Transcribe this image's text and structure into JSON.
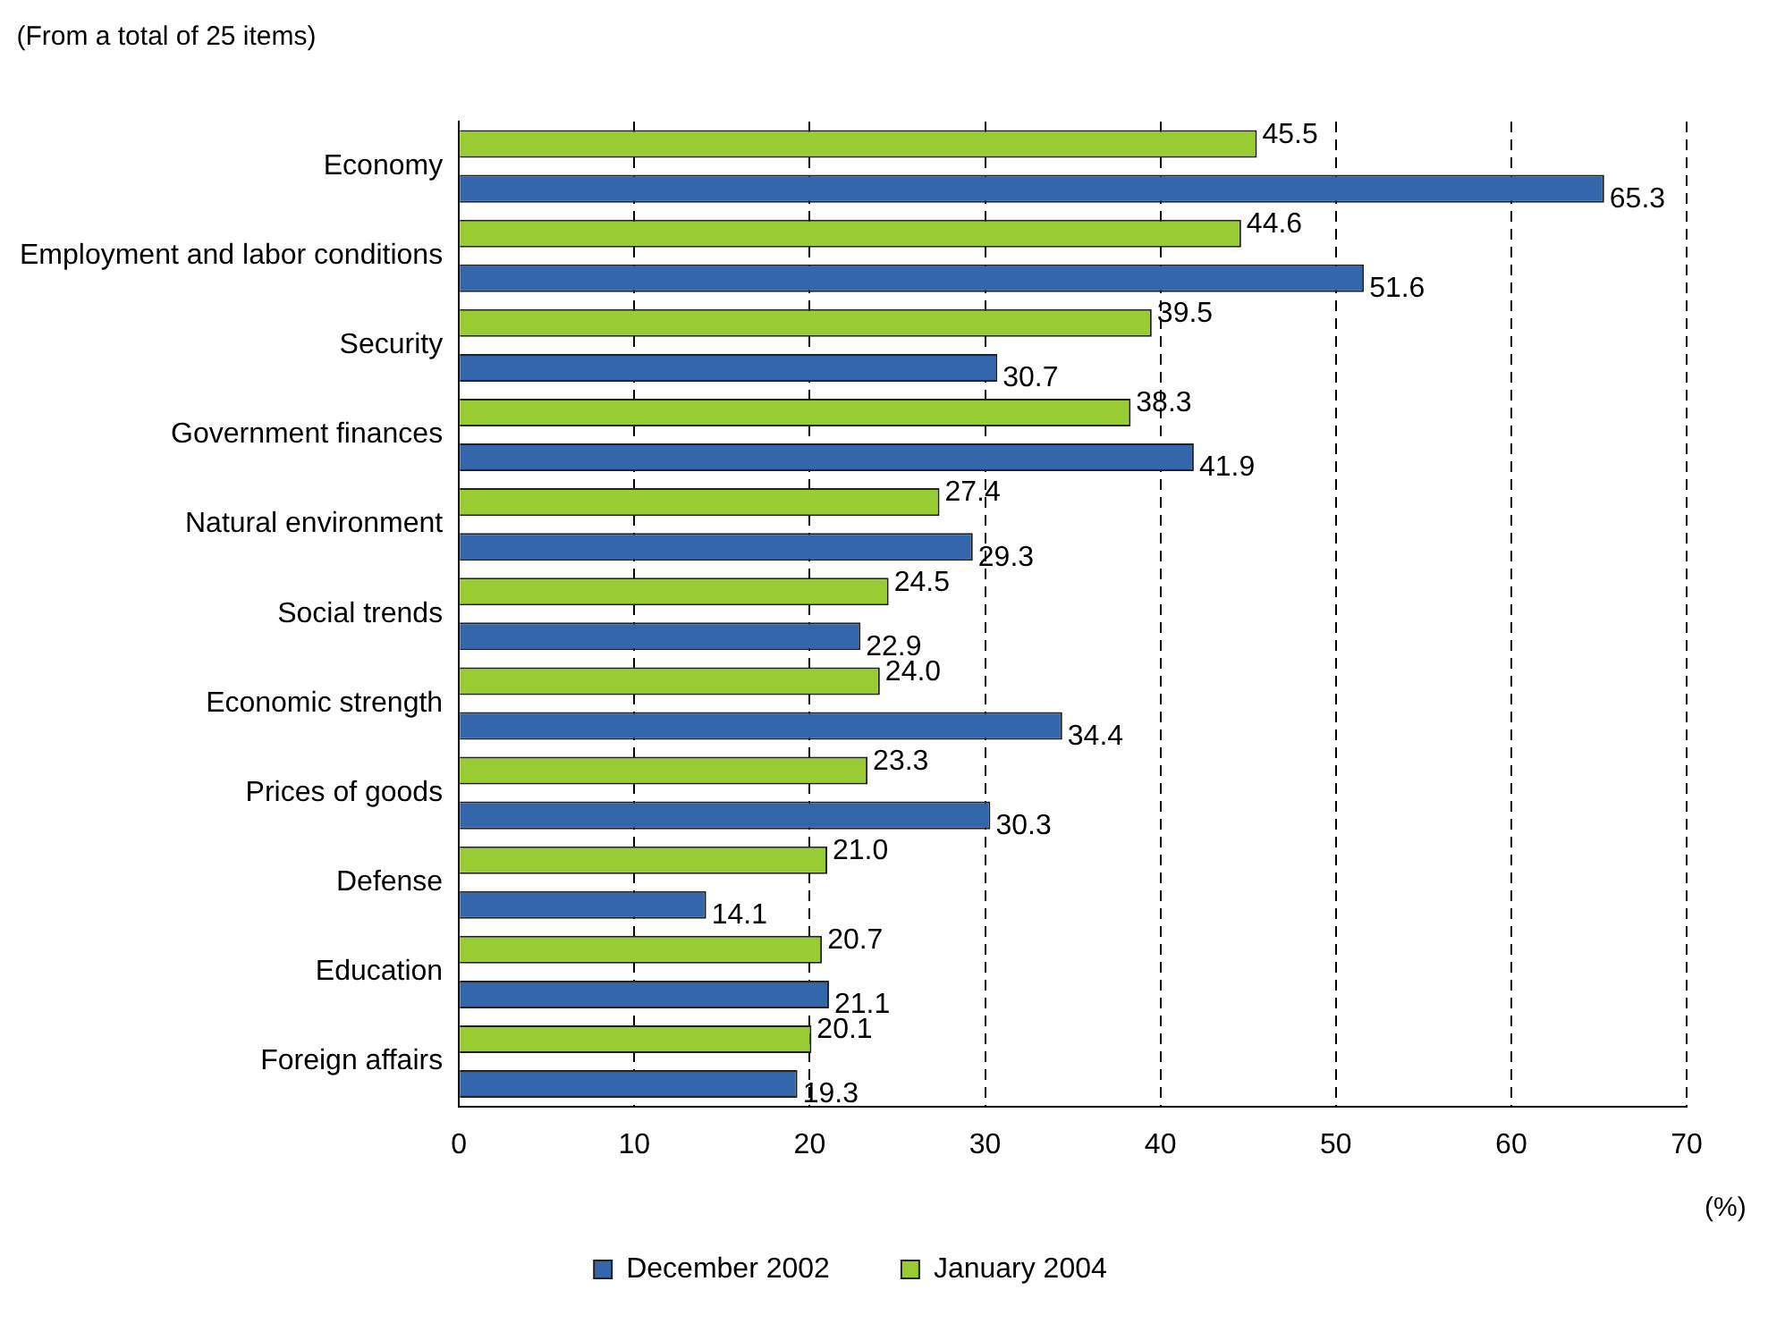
{
  "chart_data": {
    "type": "bar",
    "orientation": "horizontal",
    "annotations": [
      "(From a total of 25 items)"
    ],
    "xlabel": "(%)",
    "categories": [
      "Economy",
      "Employment and labor conditions",
      "Security",
      "Government finances",
      "Natural environment",
      "Social trends",
      "Economic strength",
      "Prices of goods",
      "Defense",
      "Education",
      "Foreign affairs"
    ],
    "series": [
      {
        "name": "January 2004",
        "color": "#99cc33",
        "values": [
          45.5,
          44.6,
          39.5,
          38.3,
          27.4,
          24.5,
          24.0,
          23.3,
          21.0,
          20.7,
          20.1
        ],
        "value_labels": [
          "45.5",
          "44.6",
          "39.5",
          "38.3",
          "27.4",
          "24.5",
          "24.0",
          "23.3",
          "21.0",
          "20.7",
          "20.1"
        ]
      },
      {
        "name": "December 2002",
        "color": "#3366aa",
        "values": [
          65.3,
          51.6,
          30.7,
          41.9,
          29.3,
          22.9,
          34.4,
          30.3,
          14.1,
          21.1,
          19.3
        ],
        "value_labels": [
          "65.3",
          "51.6",
          "30.7",
          "41.9",
          "29.3",
          "22.9",
          "34.4",
          "30.3",
          "14.1",
          "21.1",
          "19.3"
        ]
      }
    ],
    "xlim": [
      0,
      70
    ],
    "xticks": [
      0,
      10,
      20,
      30,
      40,
      50,
      60,
      70
    ],
    "grid": "x",
    "legend": "bottom"
  }
}
